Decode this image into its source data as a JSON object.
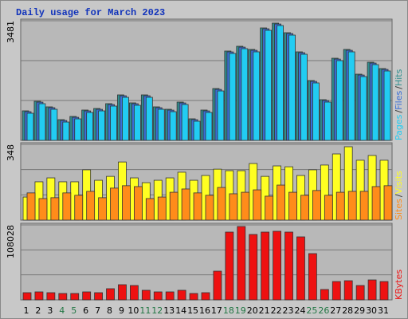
{
  "chart_data": [
    {
      "type": "bar",
      "title": "Daily usage for March 2023",
      "ylim": [
        0,
        3481
      ],
      "yticks": [
        3481
      ],
      "legend_separator": "/",
      "grid": true,
      "series": [
        {
          "name": "Hits",
          "color": "#2f8f8f",
          "values": [
            859,
            1137,
            975,
            603,
            696,
            882,
            928,
            1068,
            1323,
            1091,
            1323,
            975,
            905,
            1114,
            627,
            882,
            1508,
            2599,
            2738,
            2646,
            3272,
            3411,
            3133,
            2576,
            1741,
            1184,
            2390,
            2646,
            1926,
            2274,
            2089
          ]
        },
        {
          "name": "Files",
          "color": "#3a6fd8",
          "values": [
            834,
            1112,
            950,
            578,
            671,
            857,
            903,
            1043,
            1298,
            1066,
            1298,
            950,
            880,
            1089,
            602,
            857,
            1483,
            2574,
            2713,
            2621,
            3247,
            3386,
            3108,
            2551,
            1716,
            1159,
            2365,
            2621,
            1901,
            2249,
            2064
          ]
        },
        {
          "name": "Pages",
          "color": "#22ccf2",
          "values": [
            789,
            1067,
            905,
            533,
            626,
            812,
            858,
            998,
            1253,
            1021,
            1253,
            905,
            835,
            1044,
            557,
            812,
            1438,
            2529,
            2668,
            2576,
            3202,
            3341,
            3063,
            2506,
            1671,
            1114,
            2320,
            2576,
            1856,
            2204,
            2019
          ]
        }
      ]
    },
    {
      "type": "bar",
      "ylim": [
        0,
        348
      ],
      "yticks": [
        348
      ],
      "legend_separator": "/",
      "grid": true,
      "series": [
        {
          "name": "Visits",
          "color": "#ffff22",
          "values": [
            106,
            176,
            194,
            176,
            176,
            231,
            183,
            201,
            267,
            194,
            172,
            183,
            194,
            220,
            183,
            205,
            234,
            227,
            227,
            260,
            201,
            249,
            245,
            205,
            231,
            253,
            304,
            337,
            275,
            297,
            275
          ]
        },
        {
          "name": "Sites",
          "color": "#ff8c1a",
          "values": [
            125,
            99,
            103,
            125,
            114,
            132,
            103,
            147,
            158,
            154,
            99,
            106,
            128,
            143,
            125,
            114,
            150,
            121,
            128,
            139,
            110,
            161,
            128,
            114,
            136,
            114,
            128,
            132,
            132,
            154,
            158
          ]
        }
      ]
    },
    {
      "type": "bar",
      "ylim": [
        0,
        108028
      ],
      "yticks": [
        108028
      ],
      "grid": true,
      "categories": [
        "1",
        "2",
        "3",
        "4",
        "5",
        "6",
        "7",
        "8",
        "9",
        "10",
        "11",
        "12",
        "13",
        "14",
        "15",
        "16",
        "17",
        "18",
        "19",
        "20",
        "21",
        "22",
        "23",
        "24",
        "25",
        "26",
        "27",
        "28",
        "29",
        "30",
        "31"
      ],
      "category_label_colors": [
        "#000",
        "#000",
        "#000",
        "#227744",
        "#227744",
        "#000",
        "#000",
        "#000",
        "#000",
        "#000",
        "#227744",
        "#227744",
        "#000",
        "#000",
        "#000",
        "#000",
        "#000",
        "#227744",
        "#227744",
        "#000",
        "#000",
        "#000",
        "#000",
        "#000",
        "#227744",
        "#227744",
        "#000",
        "#000",
        "#000",
        "#000",
        "#000"
      ],
      "series": [
        {
          "name": "KBytes",
          "color": "#ee1111",
          "values": [
            10343,
            11492,
            10343,
            9194,
            9194,
            11492,
            10343,
            16089,
            21836,
            20686,
            13791,
            11492,
            11492,
            13791,
            9194,
            10343,
            41373,
            97684,
            105729,
            94238,
            97684,
            98834,
            97684,
            90789,
            66656,
            14940,
            26433,
            27582,
            20686,
            28731,
            26433
          ]
        }
      ]
    }
  ]
}
